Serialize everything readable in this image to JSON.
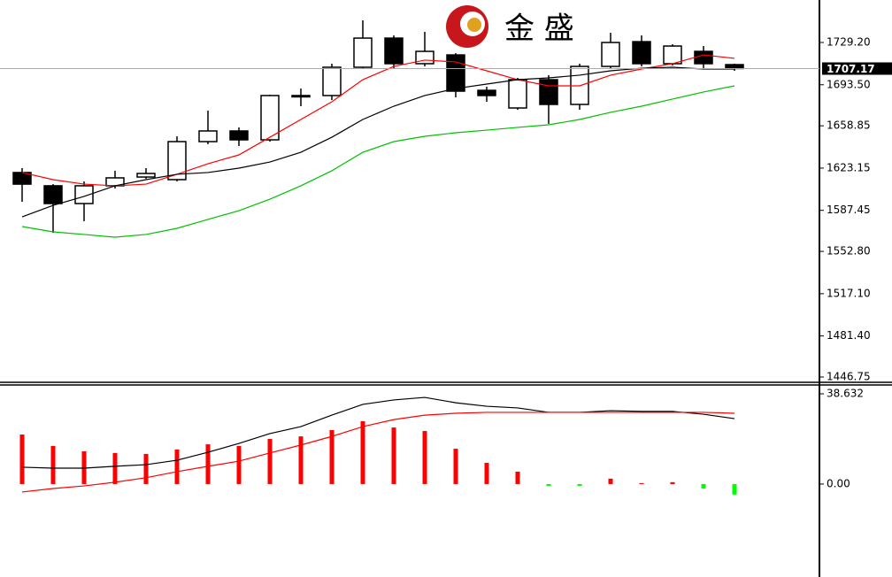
{
  "watermark": "金 盛",
  "chart_data": [
    {
      "type": "candlestick",
      "categories": [
        null,
        null,
        null,
        null,
        null,
        null,
        null,
        null,
        null,
        null,
        null,
        null,
        null,
        null,
        null,
        null,
        null,
        null,
        null,
        null,
        null,
        null,
        null,
        null
      ],
      "open": [
        1619.4,
        1608.2,
        1593.2,
        1608.2,
        1615.6,
        1613.4,
        1645.5,
        1654.5,
        1647.0,
        1683.6,
        1684.4,
        1708.3,
        1732.9,
        1711.3,
        1718.7,
        1688.8,
        1673.9,
        1697.8,
        1676.9,
        1709.0,
        1729.9,
        1711.3,
        1721.7,
        1710.5
      ],
      "high": [
        1623.1,
        1609.6,
        1611.9,
        1620.9,
        1623.1,
        1650.0,
        1671.7,
        1657.5,
        1685.1,
        1690.3,
        1711.3,
        1747.9,
        1735.2,
        1738.2,
        1720.2,
        1691.8,
        1699.3,
        1701.6,
        1711.3,
        1737.4,
        1735.2,
        1727.7,
        1726.2,
        1711.3
      ],
      "low": [
        1594.7,
        1568.5,
        1578.3,
        1605.9,
        1614.1,
        1611.9,
        1643.3,
        1641.8,
        1645.5,
        1675.4,
        1680.6,
        1706.8,
        1706.8,
        1709.0,
        1682.9,
        1679.1,
        1672.4,
        1660.5,
        1672.4,
        1707.5,
        1709.0,
        1709.8,
        1706.8,
        1705.3
      ],
      "close": [
        1609.6,
        1593.2,
        1608.2,
        1614.9,
        1618.6,
        1645.5,
        1654.5,
        1647.0,
        1684.4,
        1684.4,
        1708.3,
        1732.9,
        1711.3,
        1721.7,
        1688.1,
        1684.4,
        1697.8,
        1676.9,
        1709.0,
        1729.2,
        1711.3,
        1726.2,
        1711.3,
        1707.2
      ],
      "up_color": "#ffffff",
      "down_color": "#000000",
      "lines": [
        {
          "color": "#ff0000",
          "values": [
            1619.4,
            1613.4,
            1609.6,
            1608.2,
            1609.6,
            1617.9,
            1626.8,
            1634.3,
            1649.2,
            1664.2,
            1679.1,
            1697.8,
            1709.0,
            1714.3,
            1712.8,
            1705.3,
            1697.8,
            1692.6,
            1692.6,
            1701.6,
            1706.8,
            1711.3,
            1718.7,
            1715.8
          ]
        },
        {
          "color": "#000000",
          "values": [
            1582.0,
            1591.7,
            1599.2,
            1608.2,
            1613.4,
            1617.9,
            1619.4,
            1623.1,
            1628.3,
            1636.5,
            1649.2,
            1664.2,
            1675.4,
            1684.4,
            1690.3,
            1694.1,
            1697.8,
            1699.3,
            1701.6,
            1705.3,
            1707.5,
            1708.3,
            1706.8,
            1706.8
          ]
        },
        {
          "color": "#00c000",
          "values": [
            1573.8,
            1569.3,
            1567.1,
            1564.8,
            1567.1,
            1572.3,
            1579.8,
            1587.2,
            1596.9,
            1608.2,
            1620.9,
            1636.5,
            1645.5,
            1650.0,
            1653.0,
            1655.2,
            1657.5,
            1659.7,
            1664.2,
            1670.2,
            1675.4,
            1681.4,
            1687.4,
            1692.6
          ]
        }
      ],
      "current_price": 1707.17,
      "ylim": [
        1442.27,
        1765.07
      ],
      "yticks": [
        {
          "value": 1729.2,
          "label": "1729.20"
        },
        {
          "value": 1693.5,
          "label": "1693.50"
        },
        1658.85,
        1623.15,
        1587.45,
        {
          "value": 1552.8,
          "label": "1552.80"
        },
        {
          "value": 1517.1,
          "label": "1517.10"
        },
        {
          "value": 1481.4,
          "label": "1481.40"
        },
        1446.75
      ]
    },
    {
      "type": "macd",
      "categories": [
        null,
        null,
        null,
        null,
        null,
        null,
        null,
        null,
        null,
        null,
        null,
        null,
        null,
        null,
        null,
        null,
        null,
        null,
        null,
        null,
        null,
        null,
        null,
        null
      ],
      "values": [
        21.2,
        16.3,
        14.0,
        13.3,
        12.9,
        14.8,
        17.0,
        16.3,
        19.3,
        20.4,
        23.1,
        26.9,
        24.2,
        22.7,
        15.1,
        9.1,
        5.3,
        -0.8,
        -0.8,
        2.3,
        0.4,
        0.8,
        -1.9,
        -4.5
      ],
      "color": "#ff0000",
      "negative_color": "#00ff00",
      "lines": [
        {
          "color": "#000000",
          "values": [
            7.2,
            6.8,
            6.8,
            7.6,
            8.3,
            10.2,
            13.6,
            17.4,
            21.6,
            24.6,
            29.5,
            34.1,
            36.0,
            37.1,
            34.8,
            33.3,
            32.6,
            30.7,
            30.7,
            31.4,
            31.1,
            31.1,
            29.9,
            28.0
          ]
        },
        {
          "color": "#ff0000",
          "values": [
            -3.4,
            -1.9,
            -0.8,
            0.8,
            2.7,
            5.3,
            7.6,
            9.8,
            13.3,
            16.7,
            20.4,
            24.6,
            27.6,
            29.5,
            30.3,
            30.7,
            30.7,
            30.7,
            30.7,
            30.7,
            30.7,
            30.7,
            30.7,
            30.3
          ]
        }
      ],
      "ylim": [
        -39.8,
        42.8
      ],
      "yticks": [
        38.632,
        {
          "value": 0,
          "label": "0.00"
        }
      ]
    }
  ]
}
